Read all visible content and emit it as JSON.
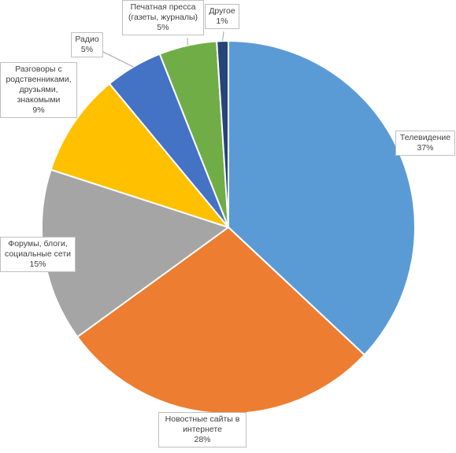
{
  "chart_data": {
    "type": "pie",
    "title": "",
    "start_angle_deg": 0,
    "direction": "clockwise",
    "legend": "none",
    "slices": [
      {
        "label": "Телевидение",
        "value": 37,
        "display": "37%",
        "color": "#5B9BD5"
      },
      {
        "label": "Новостные сайты в\nинтернете",
        "value": 28,
        "display": "28%",
        "color": "#ED7D31"
      },
      {
        "label": "Форумы, блоги,\nсоциальные сети",
        "value": 15,
        "display": "15%",
        "color": "#A5A5A5"
      },
      {
        "label": "Разговоры с\nродственниками,\nдрузьями,\nзнакомыми",
        "value": 9,
        "display": "9%",
        "color": "#FFC000"
      },
      {
        "label": "Радио",
        "value": 5,
        "display": "5%",
        "color": "#4472C4"
      },
      {
        "label": "Печатная пресса\n(газеты, журналы)",
        "value": 5,
        "display": "5%",
        "color": "#70AD47"
      },
      {
        "label": "Другое",
        "value": 1,
        "display": "1%",
        "color": "#264478"
      }
    ]
  }
}
